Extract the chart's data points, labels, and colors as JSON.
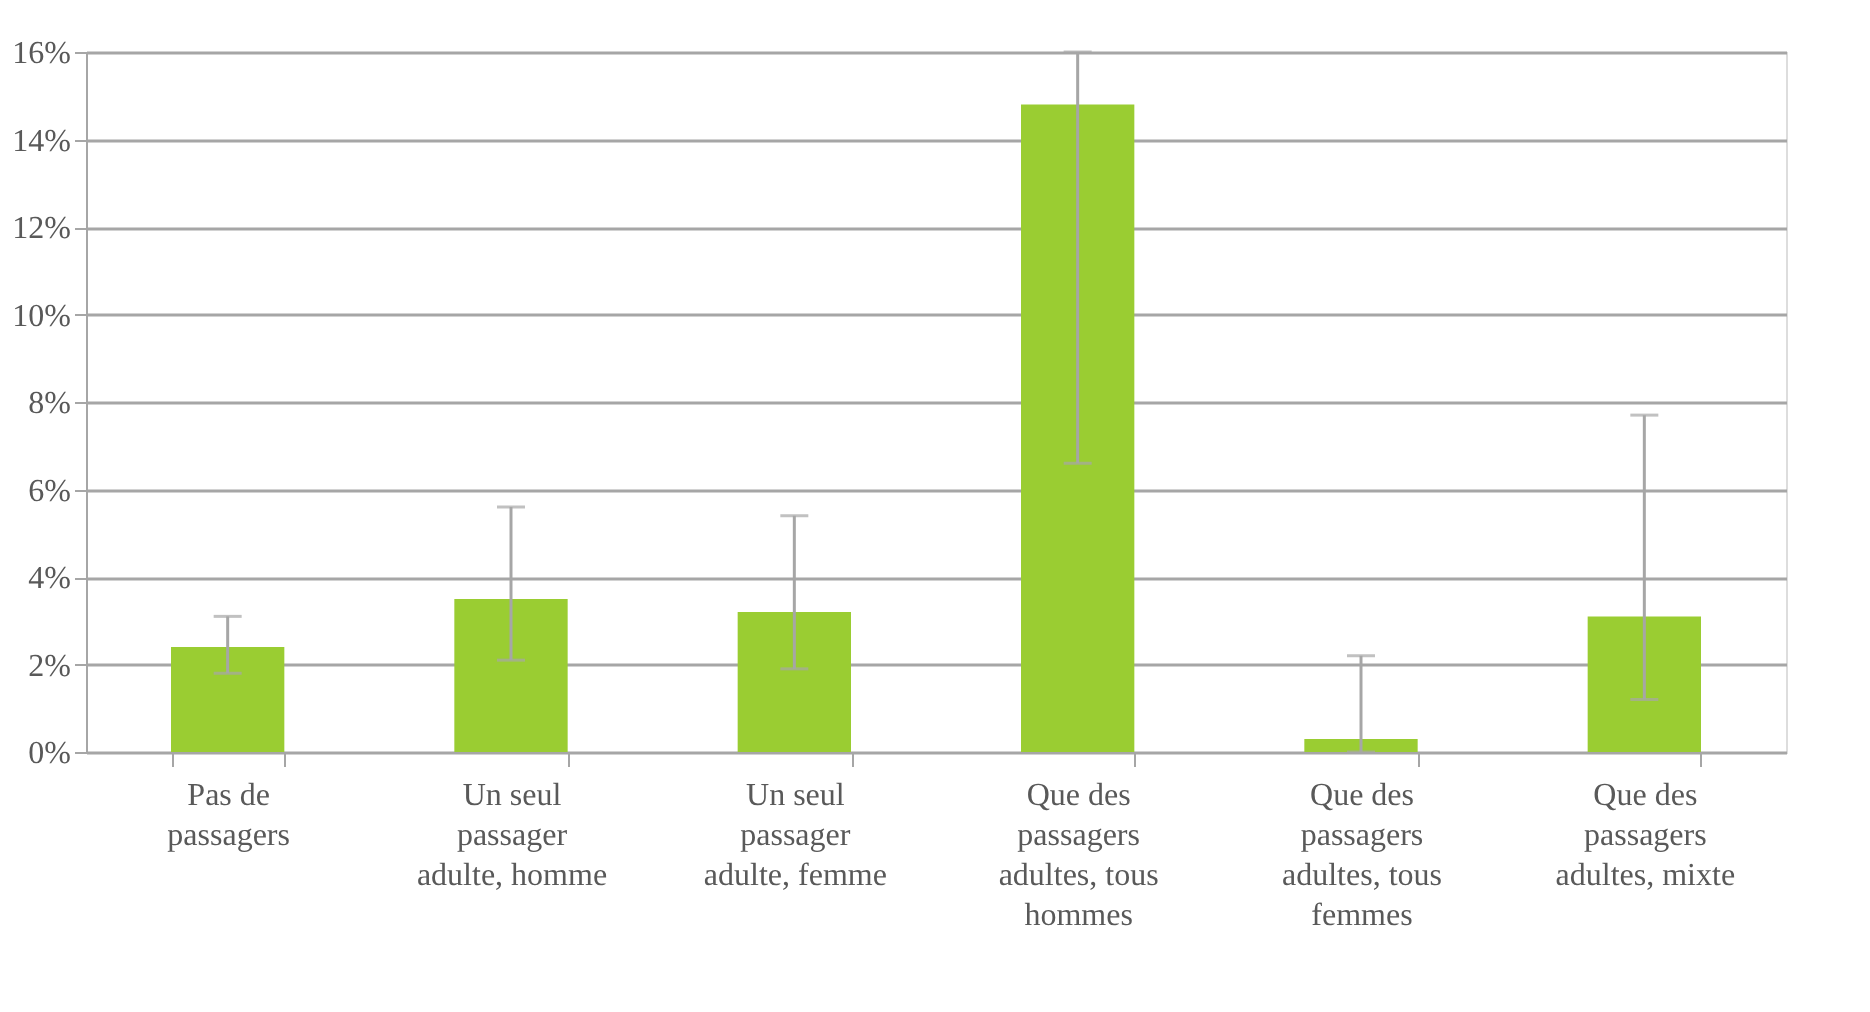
{
  "chart_data": {
    "type": "bar",
    "categories": [
      "Pas de passagers",
      "Un seul passager adulte, homme",
      "Un seul passager adulte, femme",
      "Que des passagers adultes, tous hommes",
      "Que des passagers adultes, tous femmes",
      "Que des passagers adultes, mixte"
    ],
    "values": [
      2.4,
      3.5,
      3.2,
      14.8,
      0.3,
      3.1
    ],
    "errors": [
      [
        1.8,
        3.1
      ],
      [
        2.1,
        5.6
      ],
      [
        1.9,
        5.4
      ],
      [
        6.6,
        16
      ],
      [
        0,
        2.2
      ],
      [
        1.2,
        7.7
      ]
    ],
    "color": "#9acd32",
    "ylim": [
      0,
      16
    ],
    "yticks": [
      {
        "value": 0,
        "label": "0%"
      },
      {
        "value": 2,
        "label": "2%"
      },
      {
        "value": 4,
        "label": "4%"
      },
      {
        "value": 6,
        "label": "6%"
      },
      {
        "value": 8,
        "label": "8%"
      },
      {
        "value": 10,
        "label": "10%"
      },
      {
        "value": 12,
        "label": "12%"
      },
      {
        "value": 14,
        "label": "14%"
      },
      {
        "value": 16,
        "label": "16%"
      }
    ],
    "grid": "y"
  }
}
